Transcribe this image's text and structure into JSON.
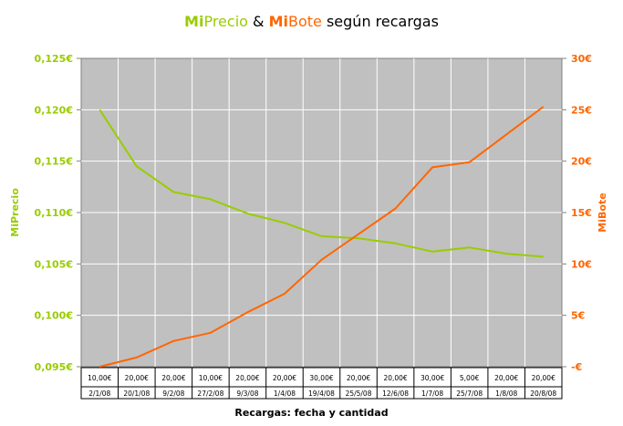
{
  "title": {
    "part1_initial": "Mi",
    "part1_rest": "Precio",
    "connector": " & ",
    "part2_initial": "Mi",
    "part2_rest": "Bote",
    "suffix": " según recargas"
  },
  "chart_data": {
    "type": "line",
    "title": "MiPrecio & MiBote según recargas",
    "xlabel": "Recargas: fecha y cantidad",
    "categories": [
      {
        "amount": "10,00€",
        "date": "2/1/08"
      },
      {
        "amount": "20,00€",
        "date": "20/1/08"
      },
      {
        "amount": "20,00€",
        "date": "9/2/08"
      },
      {
        "amount": "10,00€",
        "date": "27/2/08"
      },
      {
        "amount": "20,00€",
        "date": "9/3/08"
      },
      {
        "amount": "20,00€",
        "date": "1/4/08"
      },
      {
        "amount": "30,00€",
        "date": "19/4/08"
      },
      {
        "amount": "20,00€",
        "date": "25/5/08"
      },
      {
        "amount": "20,00€",
        "date": "12/6/08"
      },
      {
        "amount": "30,00€",
        "date": "1/7/08"
      },
      {
        "amount": "5,00€",
        "date": "25/7/08"
      },
      {
        "amount": "20,00€",
        "date": "1/8/08"
      },
      {
        "amount": "20,00€",
        "date": "20/8/08"
      }
    ],
    "left_axis": {
      "label": "MiPrecio",
      "range": [
        0.095,
        0.125
      ],
      "ticks": [
        "0,095€",
        "0,100€",
        "0,105€",
        "0,110€",
        "0,115€",
        "0,120€",
        "0,125€"
      ],
      "color": "#99cc00"
    },
    "right_axis": {
      "label": "MiBote",
      "range": [
        0,
        30
      ],
      "ticks": [
        "-€",
        "5€",
        "10€",
        "15€",
        "20€",
        "25€",
        "30€"
      ],
      "color": "#ff6600"
    },
    "series": [
      {
        "name": "MiPrecio",
        "axis": "left",
        "color": "#99cc00",
        "values": [
          0.12,
          0.1145,
          0.112,
          0.1113,
          0.1099,
          0.109,
          0.1077,
          0.1075,
          0.107,
          0.1062,
          0.1066,
          0.106,
          0.1057
        ]
      },
      {
        "name": "MiBote",
        "axis": "right",
        "color": "#ff6600",
        "values": [
          0.0,
          0.9,
          2.5,
          3.3,
          5.3,
          7.1,
          10.4,
          12.9,
          15.4,
          19.4,
          19.9,
          22.6,
          25.3
        ]
      }
    ],
    "grid": true,
    "plot_background": "#c0c0c0"
  }
}
